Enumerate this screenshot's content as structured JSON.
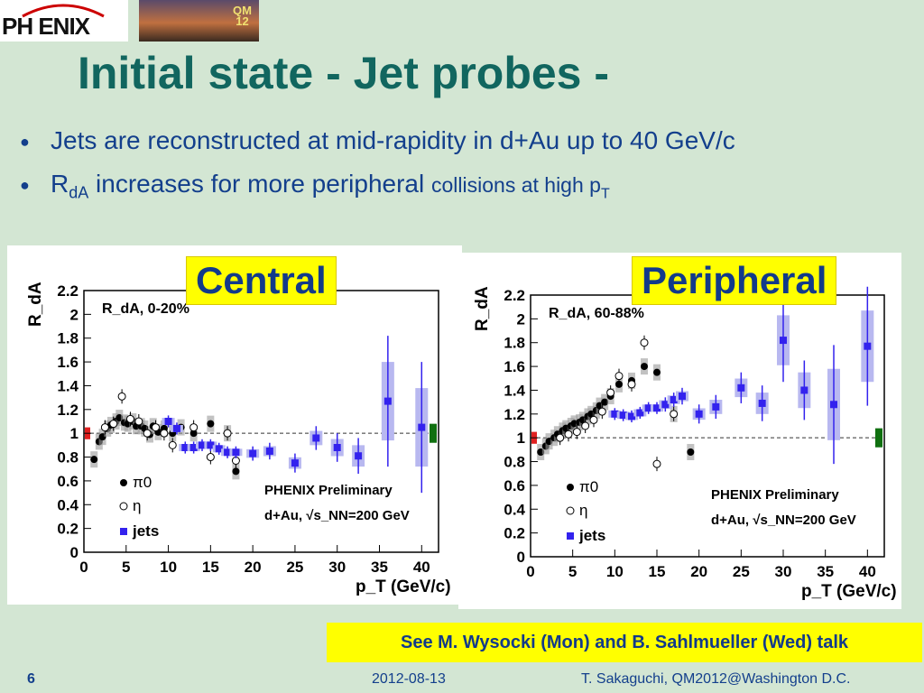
{
  "header": {
    "logo_text": "PH ENIX",
    "badge_line1": "QM",
    "badge_line2": "12"
  },
  "title": "Initial state - Jet probes -",
  "bullets": [
    {
      "text": "Jets are reconstructed at mid-rapidity in d+Au up to 40 GeV/c"
    },
    {
      "pre": "R",
      "sub": "dA",
      "text": " increases for more peripheral ",
      "small": "collisions at high p",
      "sub2": "T"
    }
  ],
  "labels": {
    "central": "Central",
    "peripheral": "Peripheral"
  },
  "reference": "See M. Wysocki (Mon) and B. Sahlmueller (Wed) talk",
  "footer": {
    "page": "6",
    "date": "2012-08-13",
    "author": "T. Sakaguchi, QM2012@Washington D.C."
  },
  "colors": {
    "title": "#11665f",
    "text": "#133f8c",
    "jets": "#3322ee",
    "highlight": "#ffff00",
    "bg": "#d3e6d3"
  },
  "chart_data": [
    {
      "type": "scatter",
      "panel": "central",
      "inset_label": "R_dA, 0-20%",
      "ylabel": "R_dA",
      "xlabel": "p_T (GeV/c)",
      "xlim": [
        0,
        42
      ],
      "ylim": [
        0,
        2.2
      ],
      "xticks": [
        "0",
        "5",
        "10",
        "15",
        "20",
        "25",
        "30",
        "35",
        "40"
      ],
      "yticks": [
        "0",
        "0.2",
        "0.4",
        "0.6",
        "0.8",
        "1",
        "1.2",
        "1.4",
        "1.6",
        "1.8",
        "2",
        "2.2"
      ],
      "annotation": [
        "PHENIX Preliminary",
        "d+Au, √s_NN=200 GeV"
      ],
      "legend": [
        "π0",
        "η",
        "jets"
      ],
      "series": [
        {
          "name": "π0",
          "x": [
            1.2,
            1.8,
            2.2,
            2.8,
            3.2,
            3.8,
            4.2,
            4.8,
            5.2,
            5.8,
            6.2,
            6.8,
            7.2,
            7.8,
            8.2,
            8.8,
            9.5,
            10.5,
            11.5,
            13,
            15,
            17,
            18
          ],
          "y": [
            0.78,
            0.93,
            0.97,
            1.04,
            1.07,
            1.1,
            1.13,
            1.09,
            1.08,
            1.1,
            1.06,
            1.06,
            1.04,
            0.99,
            1.06,
            1.01,
            1.04,
            1.0,
            1.05,
            1.0,
            1.08,
            1.0,
            0.68
          ]
        },
        {
          "name": "η",
          "x": [
            2.5,
            3.5,
            4.5,
            5.5,
            6.5,
            7.5,
            8.5,
            9.5,
            10.5,
            13,
            15,
            17,
            18
          ],
          "y": [
            1.05,
            1.08,
            1.31,
            1.12,
            1.1,
            1.0,
            1.05,
            1.0,
            0.9,
            1.05,
            0.8,
            1.0,
            0.77
          ]
        },
        {
          "name": "jets",
          "x": [
            10,
            11,
            12,
            13,
            14,
            15,
            16,
            17,
            18,
            20,
            22,
            25,
            27.5,
            30,
            32.5,
            36,
            40
          ],
          "y": [
            1.1,
            1.04,
            0.88,
            0.88,
            0.9,
            0.9,
            0.87,
            0.84,
            0.84,
            0.83,
            0.85,
            0.75,
            0.96,
            0.88,
            0.81,
            1.27,
            1.05
          ],
          "err": [
            0.05,
            0.05,
            0.05,
            0.05,
            0.05,
            0.05,
            0.05,
            0.05,
            0.05,
            0.06,
            0.07,
            0.08,
            0.1,
            0.12,
            0.15,
            0.55,
            0.55
          ]
        }
      ]
    },
    {
      "type": "scatter",
      "panel": "peripheral",
      "inset_label": "R_dA, 60-88%",
      "ylabel": "R_dA",
      "xlabel": "p_T (GeV/c)",
      "xlim": [
        0,
        42
      ],
      "ylim": [
        0,
        2.2
      ],
      "xticks": [
        "0",
        "5",
        "10",
        "15",
        "20",
        "25",
        "30",
        "35",
        "40"
      ],
      "yticks": [
        "0",
        "0.2",
        "0.4",
        "0.6",
        "0.8",
        "1",
        "1.2",
        "1.4",
        "1.6",
        "1.8",
        "2",
        "2.2"
      ],
      "annotation": [
        "PHENIX Preliminary",
        "d+Au, √s_NN=200 GeV"
      ],
      "legend": [
        "π0",
        "η",
        "jets"
      ],
      "series": [
        {
          "name": "π0",
          "x": [
            1.2,
            1.8,
            2.2,
            2.8,
            3.2,
            3.8,
            4.2,
            4.8,
            5.2,
            5.8,
            6.2,
            6.8,
            7.2,
            7.8,
            8.2,
            8.8,
            9.5,
            10.5,
            12,
            13.5,
            15,
            17,
            19
          ],
          "y": [
            0.88,
            0.93,
            0.97,
            1.0,
            1.03,
            1.06,
            1.08,
            1.1,
            1.12,
            1.13,
            1.15,
            1.18,
            1.2,
            1.23,
            1.27,
            1.3,
            1.35,
            1.45,
            1.48,
            1.6,
            1.55,
            1.2,
            0.88
          ]
        },
        {
          "name": "η",
          "x": [
            3.5,
            4.5,
            5.5,
            6.5,
            7.5,
            8.5,
            9.5,
            10.5,
            12,
            13.5,
            15,
            17
          ],
          "y": [
            1.0,
            1.03,
            1.05,
            1.1,
            1.15,
            1.22,
            1.38,
            1.52,
            1.45,
            1.8,
            0.78,
            1.2
          ]
        },
        {
          "name": "jets",
          "x": [
            10,
            11,
            12,
            13,
            14,
            15,
            16,
            17,
            18,
            20,
            22,
            25,
            27.5,
            30,
            32.5,
            36,
            40
          ],
          "y": [
            1.2,
            1.19,
            1.18,
            1.21,
            1.25,
            1.25,
            1.28,
            1.32,
            1.35,
            1.2,
            1.26,
            1.42,
            1.29,
            1.82,
            1.4,
            1.28,
            1.77
          ],
          "err": [
            0.05,
            0.05,
            0.05,
            0.05,
            0.05,
            0.05,
            0.06,
            0.06,
            0.07,
            0.08,
            0.1,
            0.13,
            0.15,
            0.35,
            0.25,
            0.5,
            0.5
          ]
        }
      ]
    }
  ]
}
